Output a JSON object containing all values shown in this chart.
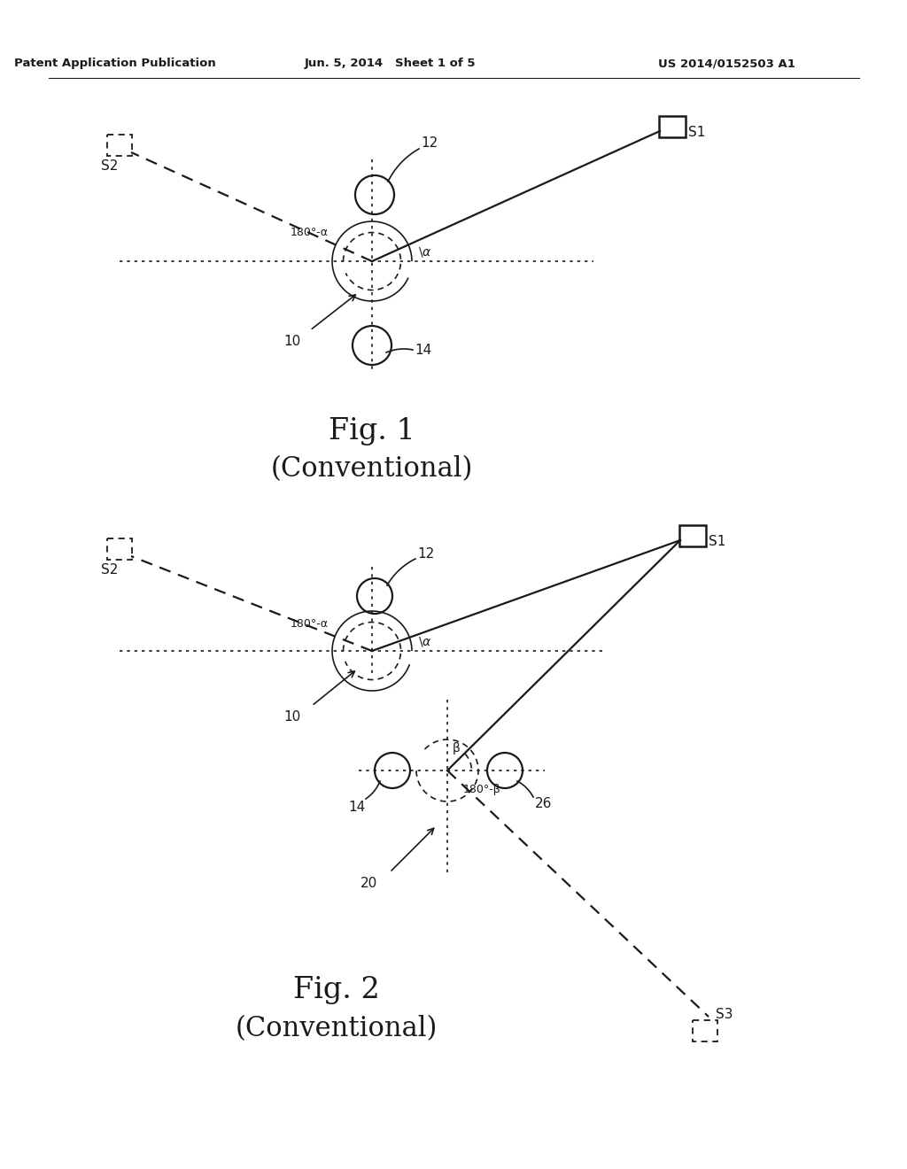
{
  "header_left": "Patent Application Publication",
  "header_mid": "Jun. 5, 2014   Sheet 1 of 5",
  "header_right": "US 2014/0152503 A1",
  "fig1_title": "Fig. 1",
  "fig1_subtitle": "(Conventional)",
  "fig2_title": "Fig. 2",
  "fig2_subtitle": "(Conventional)",
  "bg_color": "#ffffff",
  "line_color": "#1a1a1a"
}
